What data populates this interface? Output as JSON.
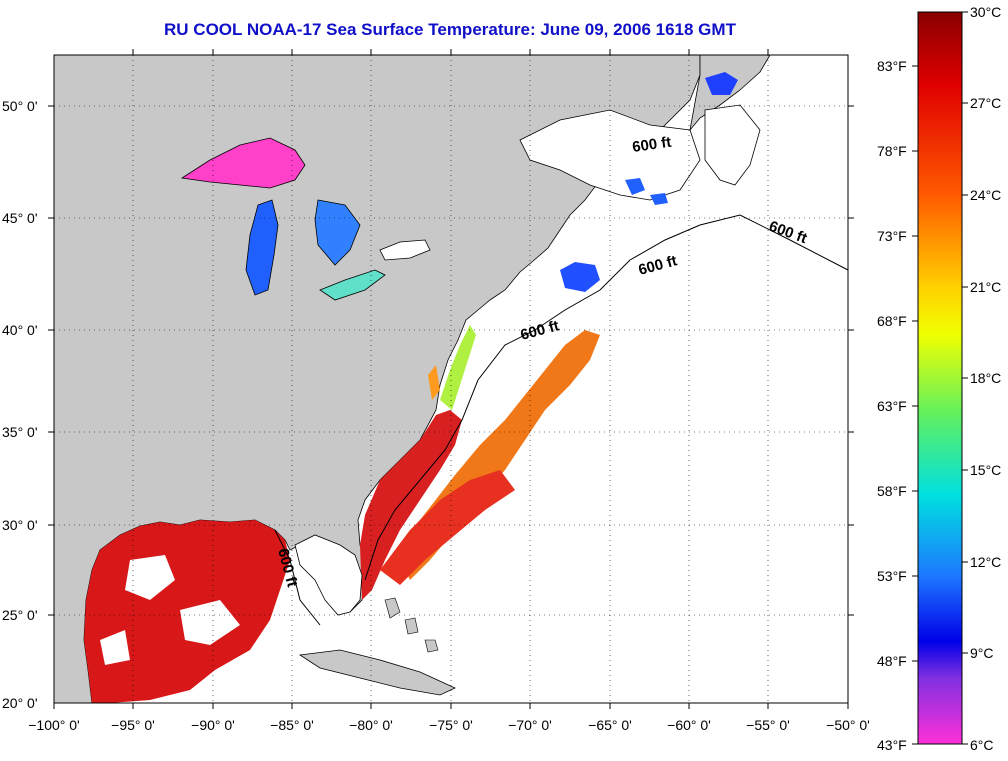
{
  "title": "RU COOL  NOAA-17  Sea Surface Temperature:  June 09, 2006 1618 GMT",
  "axes": {
    "lat_labels": [
      "50° 0'",
      "45° 0'",
      "40° 0'",
      "35° 0'",
      "30° 0'",
      "25° 0'",
      "20° 0'"
    ],
    "lon_labels": [
      "−100° 0'",
      "−95° 0'",
      "−90° 0'",
      "−85° 0'",
      "−80° 0'",
      "−75° 0'",
      "−70° 0'",
      "−65° 0'",
      "−60° 0'",
      "−55° 0'",
      "−50° 0'"
    ]
  },
  "isobath_label": "600 ft",
  "colorbar": {
    "celsius": [
      "30°C",
      "27°C",
      "24°C",
      "21°C",
      "18°C",
      "15°C",
      "12°C",
      "9°C",
      "6°C"
    ],
    "fahrenheit": [
      "83°F",
      "78°F",
      "73°F",
      "68°F",
      "63°F",
      "58°F",
      "53°F",
      "48°F",
      "43°F"
    ]
  },
  "colors": {
    "land": "#c8c8c8",
    "ocean_nodata": "#ffffff",
    "title": "#1010c8",
    "sst_warm": "#d81818",
    "sst_orange": "#f07818"
  }
}
